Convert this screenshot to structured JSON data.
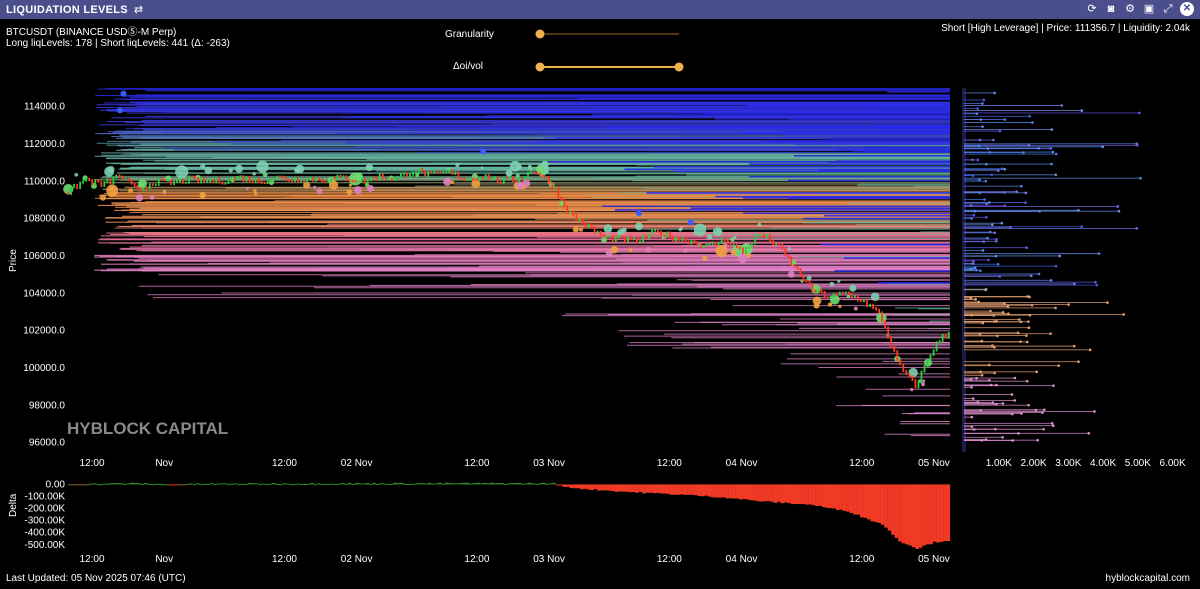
{
  "window": {
    "title": "LIQUIDATION LEVELS",
    "settings_icon": "sliders-icon"
  },
  "toolbar": {
    "icons": [
      "refresh-icon",
      "camera-icon",
      "gear-icon",
      "save-icon",
      "expand-icon",
      "close-icon"
    ]
  },
  "symbol": "BTCUSDT (BINANCE USDⓈ-M Perp)",
  "levels_summary": "Long liqLevels: 178 | Short liqLevels: 441 (Δ: -263)",
  "hover_info": "Short [High Leverage] | Price: 111356.7 | Liquidity: 2.04k",
  "controls": {
    "granularity": {
      "label": "Granularity",
      "value": 0.0
    },
    "oi_vol": {
      "label": "Δoi/vol",
      "range": [
        0.0,
        1.0
      ]
    }
  },
  "watermark": "HYBLOCK CAPITAL",
  "footer": {
    "last_updated": "Last Updated: 05 Nov 2025 07:46 (UTC)",
    "site": "hyblockcapital.com"
  },
  "chart_data": [
    {
      "type": "line",
      "title": "",
      "ylabel": "Price",
      "x_tick_labels": [
        "12:00",
        "Nov",
        "12:00",
        "02 Nov",
        "12:00",
        "03 Nov",
        "12:00",
        "04 Nov",
        "12:00",
        "05 Nov"
      ],
      "y_tick_labels": [
        "114000.0",
        "112000.0",
        "110000.0",
        "108000.0",
        "106000.0",
        "104000.0",
        "102000.0",
        "100000.0",
        "98000.0",
        "96000.0"
      ],
      "ylim": [
        95500,
        115000
      ],
      "x_range_hours": [
        0,
        102
      ],
      "price_series": [
        [
          0,
          109400
        ],
        [
          2,
          110100
        ],
        [
          4,
          109800
        ],
        [
          6,
          110300
        ],
        [
          8,
          109500
        ],
        [
          10,
          110000
        ],
        [
          12,
          109900
        ],
        [
          14,
          110100
        ],
        [
          16,
          110000
        ],
        [
          18,
          110050
        ],
        [
          20,
          110200
        ],
        [
          22,
          110000
        ],
        [
          24,
          110200
        ],
        [
          26,
          110100
        ],
        [
          28,
          110150
        ],
        [
          30,
          110100
        ],
        [
          32,
          110200
        ],
        [
          34,
          110000
        ],
        [
          36,
          110250
        ],
        [
          38,
          110150
        ],
        [
          40,
          110600
        ],
        [
          42,
          110300
        ],
        [
          44,
          110500
        ],
        [
          46,
          110100
        ],
        [
          48,
          110300
        ],
        [
          50,
          110000
        ],
        [
          52,
          110100
        ],
        [
          54,
          110600
        ],
        [
          56,
          109800
        ],
        [
          58,
          108300
        ],
        [
          60,
          107600
        ],
        [
          62,
          107000
        ],
        [
          64,
          106900
        ],
        [
          66,
          106800
        ],
        [
          68,
          107300
        ],
        [
          70,
          107000
        ],
        [
          72,
          106800
        ],
        [
          74,
          106500
        ],
        [
          76,
          106900
        ],
        [
          78,
          106200
        ],
        [
          80,
          107200
        ],
        [
          82,
          106600
        ],
        [
          84,
          105400
        ],
        [
          86,
          104200
        ],
        [
          88,
          103800
        ],
        [
          90,
          104000
        ],
        [
          92,
          103600
        ],
        [
          94,
          102800
        ],
        [
          96,
          100200
        ],
        [
          98,
          99000
        ],
        [
          100,
          101000
        ],
        [
          101,
          101600
        ],
        [
          102,
          101900
        ]
      ],
      "liquidation_levels": {
        "short_bands": [
          {
            "price": 114500,
            "start_hour": 6,
            "color": "#2a2ad8"
          },
          {
            "price": 113500,
            "start_hour": 6,
            "color": "#3030c8"
          },
          {
            "price": 112800,
            "start_hour": 6,
            "color": "#5aa0a0"
          },
          {
            "price": 111500,
            "start_hour": 6,
            "color": "#6fb0a8"
          },
          {
            "price": 110500,
            "start_hour": 8,
            "color": "#7cc0a0"
          }
        ],
        "long_bands": [
          {
            "price": 109000,
            "start_hour": 3,
            "color": "#f08040"
          },
          {
            "price": 108300,
            "start_hour": 3,
            "color": "#f0a060"
          },
          {
            "price": 107000,
            "start_hour": 4,
            "color": "#e070a0"
          },
          {
            "price": 106000,
            "start_hour": 3,
            "color": "#e080c0"
          }
        ]
      }
    },
    {
      "type": "bar",
      "title": "",
      "xlabel": "",
      "ylabel": "",
      "x_tick_labels": [
        "1.00K",
        "2.00K",
        "3.00K",
        "4.00K",
        "5.00K",
        "6.00K"
      ],
      "xlim": [
        0,
        6500
      ]
    },
    {
      "type": "area",
      "title": "",
      "ylabel": "Delta",
      "x_tick_labels": [
        "12:00",
        "Nov",
        "12:00",
        "02 Nov",
        "12:00",
        "03 Nov",
        "12:00",
        "04 Nov",
        "12:00",
        "05 Nov"
      ],
      "y_tick_labels": [
        "0.00",
        "-100.00K",
        "-200.00K",
        "-300.00K",
        "-400.00K",
        "-500.00K"
      ],
      "ylim": [
        -560000,
        20000
      ],
      "series": [
        [
          0,
          2000
        ],
        [
          6,
          8000
        ],
        [
          8,
          10000
        ],
        [
          10,
          3000
        ],
        [
          12,
          -2000
        ],
        [
          14,
          4000
        ],
        [
          20,
          6000
        ],
        [
          30,
          8000
        ],
        [
          40,
          9000
        ],
        [
          50,
          10000
        ],
        [
          56,
          9000
        ],
        [
          57,
          -20000
        ],
        [
          60,
          -40000
        ],
        [
          64,
          -60000
        ],
        [
          68,
          -75000
        ],
        [
          72,
          -90000
        ],
        [
          76,
          -110000
        ],
        [
          80,
          -140000
        ],
        [
          82,
          -150000
        ],
        [
          86,
          -170000
        ],
        [
          88,
          -200000
        ],
        [
          90,
          -220000
        ],
        [
          92,
          -280000
        ],
        [
          94,
          -330000
        ],
        [
          96,
          -470000
        ],
        [
          98,
          -530000
        ],
        [
          100,
          -480000
        ],
        [
          102,
          -460000
        ]
      ]
    }
  ]
}
